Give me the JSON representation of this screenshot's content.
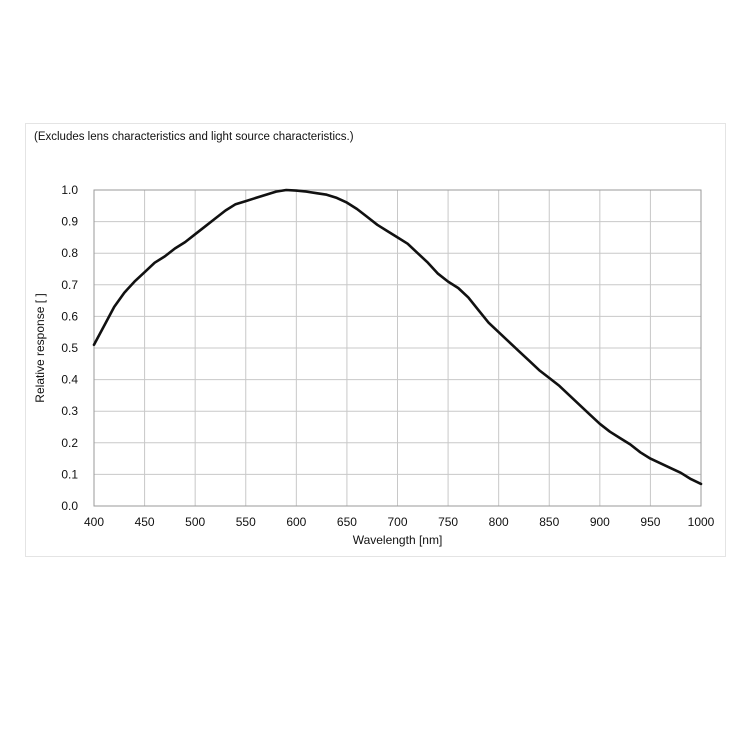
{
  "chart_data": {
    "type": "line",
    "annotation": "(Excludes lens characteristics and light source characteristics.)",
    "xlabel": "Wavelength [nm]",
    "ylabel": "Relative response [ ]",
    "xlim": [
      400,
      1000
    ],
    "ylim": [
      0.0,
      1.0
    ],
    "x_ticks": [
      400,
      450,
      500,
      550,
      600,
      650,
      700,
      750,
      800,
      850,
      900,
      950,
      1000
    ],
    "y_ticks": [
      0.0,
      0.1,
      0.2,
      0.3,
      0.4,
      0.5,
      0.6,
      0.7,
      0.8,
      0.9,
      1.0
    ],
    "y_tick_labels": [
      "0.0",
      "0.1",
      "0.2",
      "0.3",
      "0.4",
      "0.5",
      "0.6",
      "0.7",
      "0.8",
      "0.9",
      "1.0"
    ],
    "grid": true,
    "series": [
      {
        "x": [
          400,
          410,
          420,
          430,
          440,
          450,
          460,
          470,
          480,
          490,
          500,
          510,
          520,
          530,
          540,
          550,
          560,
          570,
          580,
          590,
          600,
          610,
          620,
          630,
          640,
          650,
          660,
          670,
          680,
          690,
          700,
          710,
          720,
          730,
          740,
          750,
          760,
          770,
          780,
          790,
          800,
          810,
          820,
          830,
          840,
          850,
          860,
          870,
          880,
          890,
          900,
          910,
          920,
          930,
          940,
          950,
          960,
          970,
          980,
          990,
          1000
        ],
        "y": [
          0.51,
          0.57,
          0.63,
          0.675,
          0.71,
          0.74,
          0.77,
          0.79,
          0.815,
          0.835,
          0.86,
          0.885,
          0.91,
          0.935,
          0.955,
          0.965,
          0.975,
          0.985,
          0.995,
          1.0,
          0.998,
          0.995,
          0.99,
          0.985,
          0.975,
          0.96,
          0.94,
          0.915,
          0.89,
          0.87,
          0.85,
          0.83,
          0.8,
          0.77,
          0.735,
          0.71,
          0.69,
          0.66,
          0.62,
          0.58,
          0.55,
          0.52,
          0.49,
          0.46,
          0.43,
          0.405,
          0.38,
          0.35,
          0.32,
          0.29,
          0.26,
          0.235,
          0.215,
          0.195,
          0.17,
          0.15,
          0.135,
          0.12,
          0.105,
          0.085,
          0.07
        ]
      }
    ],
    "colors": {
      "curve": "#111111",
      "grid": "#c8c8c8"
    }
  }
}
